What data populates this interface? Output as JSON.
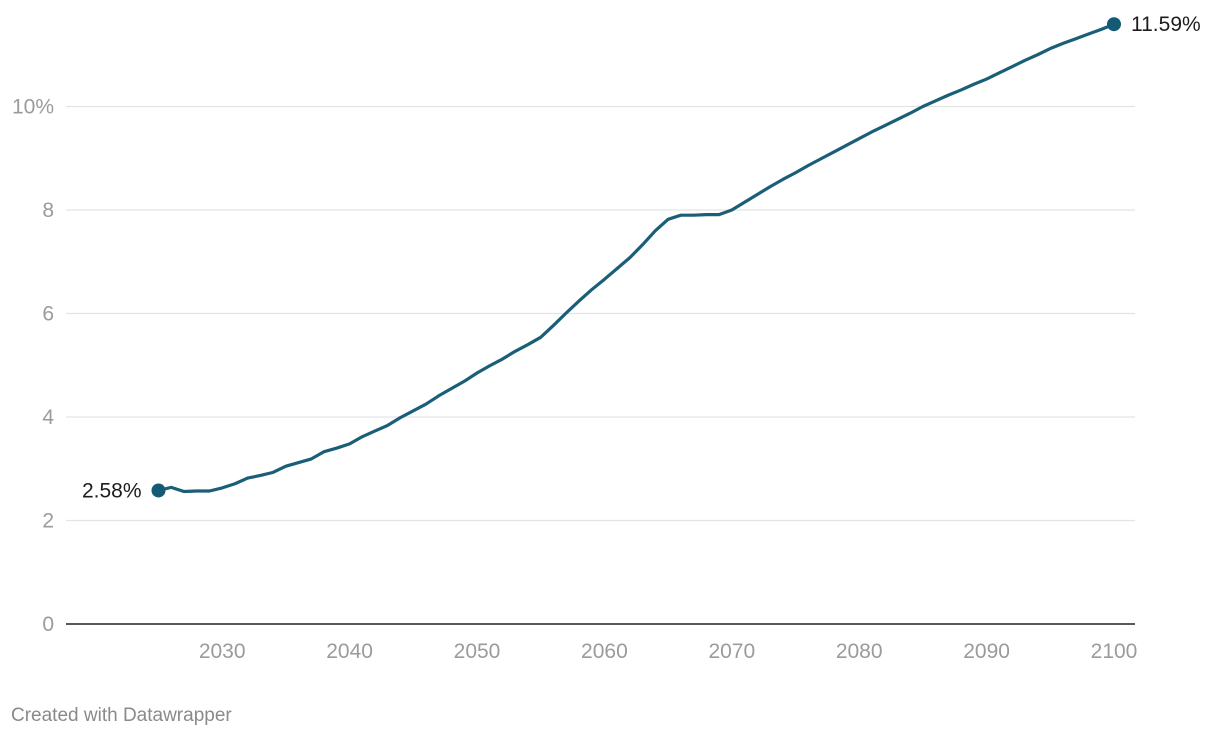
{
  "credit": "Created with Datawrapper",
  "colors": {
    "line": "#1a5e78",
    "marker": "#155a74",
    "grid": "#e3e3e3",
    "tick": "#9b9b9b"
  },
  "chart_data": {
    "type": "line",
    "title": "",
    "xlabel": "",
    "ylabel": "",
    "xlim": [
      2025,
      2100
    ],
    "ylim": [
      0,
      11.59
    ],
    "grid": true,
    "x_ticks": [
      2030,
      2040,
      2050,
      2060,
      2070,
      2080,
      2090,
      2100
    ],
    "x_tick_labels": [
      "2030",
      "2040",
      "2050",
      "2060",
      "2070",
      "2080",
      "2090",
      "2100"
    ],
    "y_ticks": [
      0,
      2,
      4,
      6,
      8,
      10
    ],
    "y_tick_labels": [
      "0",
      "2",
      "4",
      "6",
      "8",
      "10%"
    ],
    "series": [
      {
        "x": [
          2025,
          2026,
          2027,
          2028,
          2029,
          2030,
          2031,
          2032,
          2033,
          2034,
          2035,
          2036,
          2037,
          2038,
          2039,
          2040,
          2041,
          2042,
          2043,
          2044,
          2045,
          2046,
          2047,
          2048,
          2049,
          2050,
          2051,
          2052,
          2053,
          2054,
          2055,
          2056,
          2057,
          2058,
          2059,
          2060,
          2061,
          2062,
          2063,
          2064,
          2065,
          2066,
          2067,
          2068,
          2069,
          2070,
          2071,
          2072,
          2073,
          2074,
          2075,
          2076,
          2077,
          2078,
          2079,
          2080,
          2081,
          2082,
          2083,
          2084,
          2085,
          2086,
          2087,
          2088,
          2089,
          2090,
          2091,
          2092,
          2093,
          2094,
          2095,
          2096,
          2097,
          2098,
          2099,
          2100
        ],
        "values": [
          2.58,
          2.64,
          2.56,
          2.57,
          2.57,
          2.63,
          2.71,
          2.82,
          2.87,
          2.93,
          3.05,
          3.12,
          3.19,
          3.33,
          3.4,
          3.48,
          3.62,
          3.73,
          3.84,
          3.99,
          4.12,
          4.25,
          4.41,
          4.55,
          4.69,
          4.85,
          4.99,
          5.12,
          5.27,
          5.4,
          5.54,
          5.77,
          6.01,
          6.24,
          6.46,
          6.66,
          6.87,
          7.08,
          7.33,
          7.6,
          7.82,
          7.9,
          7.9,
          7.91,
          7.91,
          8.0,
          8.15,
          8.3,
          8.45,
          8.59,
          8.72,
          8.86,
          8.99,
          9.12,
          9.25,
          9.38,
          9.51,
          9.63,
          9.75,
          9.87,
          10.0,
          10.11,
          10.22,
          10.32,
          10.43,
          10.53,
          10.65,
          10.77,
          10.89,
          11.0,
          11.12,
          11.22,
          11.31,
          11.4,
          11.49,
          11.59
        ]
      }
    ],
    "end_labels": {
      "start": "2.58%",
      "end": "11.59%"
    }
  }
}
